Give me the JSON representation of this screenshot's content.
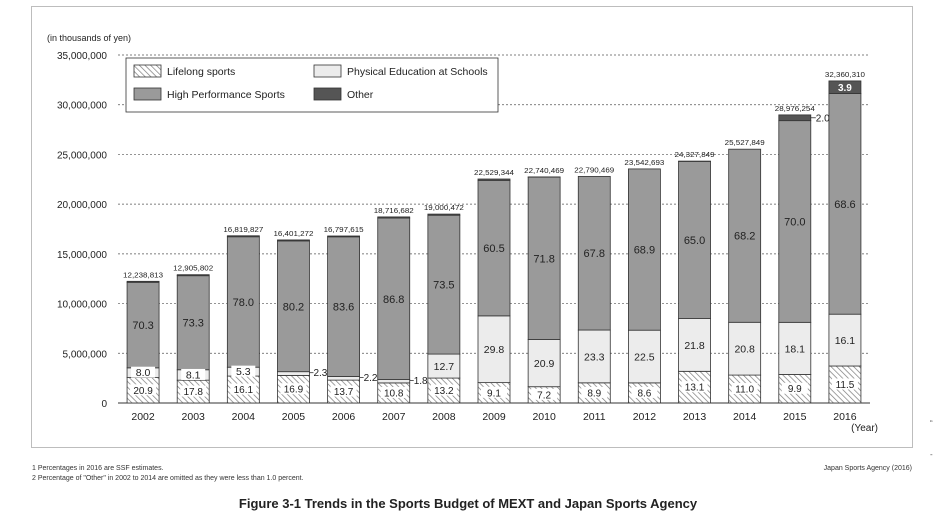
{
  "chart_data": {
    "type": "bar",
    "stacked": true,
    "title": "",
    "ylabel": "(in thousands of yen)",
    "xlabel": "(Year)",
    "ylim": [
      0,
      35000000
    ],
    "yticks": [
      0,
      5000000,
      10000000,
      15000000,
      20000000,
      25000000,
      30000000,
      35000000
    ],
    "ytick_labels": [
      "0",
      "5,000,000",
      "10,000,000",
      "15,000,000",
      "20,000,000",
      "25,000,000",
      "30,000,000",
      "35,000,000"
    ],
    "grid": "dashed-horizontal",
    "legend_position": "top-left",
    "categories": [
      "2002",
      "2003",
      "2004",
      "2005",
      "2006",
      "2007",
      "2008",
      "2009",
      "2010",
      "2011",
      "2012",
      "2013",
      "2014",
      "2015",
      "2016"
    ],
    "totals": [
      12238813,
      12905802,
      16819827,
      16401272,
      16797615,
      18716682,
      19000472,
      22529344,
      22740469,
      22790469,
      23542693,
      24327849,
      25527849,
      28976254,
      32360310
    ],
    "total_labels": [
      "12,238,813",
      "12,905,802",
      "16,819,827",
      "16,401,272",
      "16,797,615",
      "18,716,682",
      "19,000,472",
      "22,529,344",
      "22,740,469",
      "22,790,469",
      "23,542,693",
      "24,327,849",
      "25,527,849",
      "28,976,254",
      "32,360,310"
    ],
    "series": [
      {
        "name": "Lifelong sports",
        "pattern": "hatched",
        "percent": [
          20.9,
          17.8,
          16.1,
          16.9,
          13.7,
          10.8,
          13.2,
          9.1,
          7.2,
          8.9,
          8.6,
          13.1,
          11.0,
          9.9,
          11.5
        ],
        "labels": [
          "20.9",
          "17.8",
          "16.1",
          "16.9",
          "13.7",
          "10.8",
          "13.2",
          "9.1",
          "7.2",
          "8.9",
          "8.6",
          "13.1",
          "11.0",
          "9.9",
          "11.5"
        ]
      },
      {
        "name": "Physical Education at Schools",
        "color": "#ececec",
        "percent": [
          8.0,
          8.1,
          5.3,
          2.3,
          2.2,
          1.8,
          12.7,
          29.8,
          20.9,
          23.3,
          22.5,
          21.8,
          20.8,
          18.1,
          16.1
        ],
        "labels": [
          "8.0",
          "8.1",
          "5.3",
          "2.3",
          "2.2",
          "1.8",
          "12.7",
          "29.8",
          "20.9",
          "23.3",
          "22.5",
          "21.8",
          "20.8",
          "18.1",
          "16.1"
        ]
      },
      {
        "name": "High Performance Sports",
        "color": "#9a9a9a",
        "percent": [
          70.3,
          73.3,
          78.0,
          80.2,
          83.6,
          86.8,
          73.5,
          60.5,
          71.8,
          67.8,
          68.9,
          65.0,
          68.2,
          70.0,
          68.6
        ],
        "labels": [
          "70.3",
          "73.3",
          "78.0",
          "80.2",
          "83.6",
          "86.8",
          "73.5",
          "60.5",
          "71.8",
          "67.8",
          "68.9",
          "65.0",
          "68.2",
          "70.0",
          "68.6"
        ]
      },
      {
        "name": "Other",
        "color": "#555555",
        "percent": [
          0.8,
          0.8,
          0.6,
          0.6,
          0.5,
          0.6,
          0.6,
          0.6,
          0.1,
          0.0,
          0.0,
          0.1,
          0.0,
          2.0,
          3.9
        ],
        "labels": [
          "",
          "",
          "",
          "",
          "",
          "",
          "",
          "",
          "",
          "",
          "",
          "",
          "",
          "2.0",
          "3.9"
        ]
      }
    ],
    "notes": [
      "1  Percentages in 2016 are SSF estimates.",
      "2  Percentage of \"Other\" in 2002 to 2014 are omitted as they were less than 1.0 percent."
    ],
    "source": "Japan Sports Agency (2016)",
    "caption": "Figure 3-1  Trends in the Sports Budget of MEXT and Japan Sports Agency"
  },
  "side_marks": [
    "“",
    "-"
  ]
}
